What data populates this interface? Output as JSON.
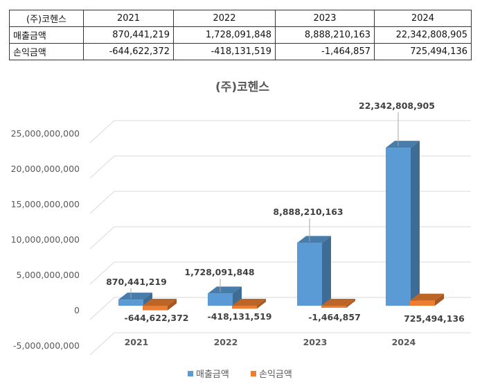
{
  "table": {
    "header": [
      "(주)코헨스",
      "2021",
      "2022",
      "2023",
      "2024"
    ],
    "rows": [
      {
        "label": "매출금액",
        "values": [
          "870,441,219",
          "1,728,091,848",
          "8,888,210,163",
          "22,342,808,905"
        ]
      },
      {
        "label": "손익금액",
        "values": [
          "-644,622,372",
          "-418,131,519",
          "-1,464,857",
          "725,494,136"
        ]
      }
    ]
  },
  "chart_data": {
    "type": "bar",
    "title": "(주)코헨스",
    "categories": [
      "2021",
      "2022",
      "2023",
      "2024"
    ],
    "series": [
      {
        "name": "매출금액",
        "color": "#5b9bd5",
        "values": [
          870441219,
          1728091848,
          8888210163,
          22342808905
        ],
        "labels": [
          "870,441,219",
          "1,728,091,848",
          "8,888,210,163",
          "22,342,808,905"
        ]
      },
      {
        "name": "손익금액",
        "color": "#ed7d31",
        "values": [
          -644622372,
          -418131519,
          -1464857,
          725494136
        ],
        "labels": [
          "-644,622,372",
          "-418,131,519",
          "-1,464,857",
          "725,494,136"
        ]
      }
    ],
    "ylim": [
      -5000000000,
      25000000000
    ],
    "yticks": [
      "-5,000,000,000",
      "0",
      "5,000,000,000",
      "10,000,000,000",
      "15,000,000,000",
      "20,000,000,000",
      "25,000,000,000"
    ],
    "grid": true,
    "legend": "bottom",
    "style": "3d-column"
  }
}
